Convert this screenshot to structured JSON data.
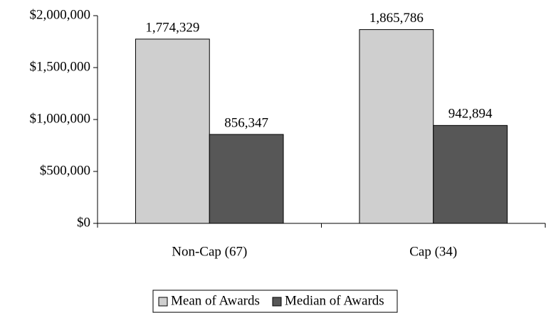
{
  "chart_data": {
    "type": "bar",
    "categories": [
      "Non-Cap (67)",
      "Cap (34)"
    ],
    "series": [
      {
        "name": "Mean of Awards",
        "color": "#cfcfcf",
        "values": [
          1774329,
          1865786
        ],
        "value_labels": [
          "1,774,329",
          "1,865,786"
        ]
      },
      {
        "name": "Median of Awards",
        "color": "#575757",
        "values": [
          856347,
          942894
        ],
        "value_labels": [
          "856,347",
          "942,894"
        ]
      }
    ],
    "ylim": [
      0,
      2000000
    ],
    "yticks": [
      {
        "value": 0,
        "label": "$0"
      },
      {
        "value": 500000,
        "label": "$500,000"
      },
      {
        "value": 1000000,
        "label": "$1,000,000"
      },
      {
        "value": 1500000,
        "label": "$1,500,000"
      },
      {
        "value": 2000000,
        "label": "$2,000,000"
      }
    ],
    "legend": "bottom"
  }
}
